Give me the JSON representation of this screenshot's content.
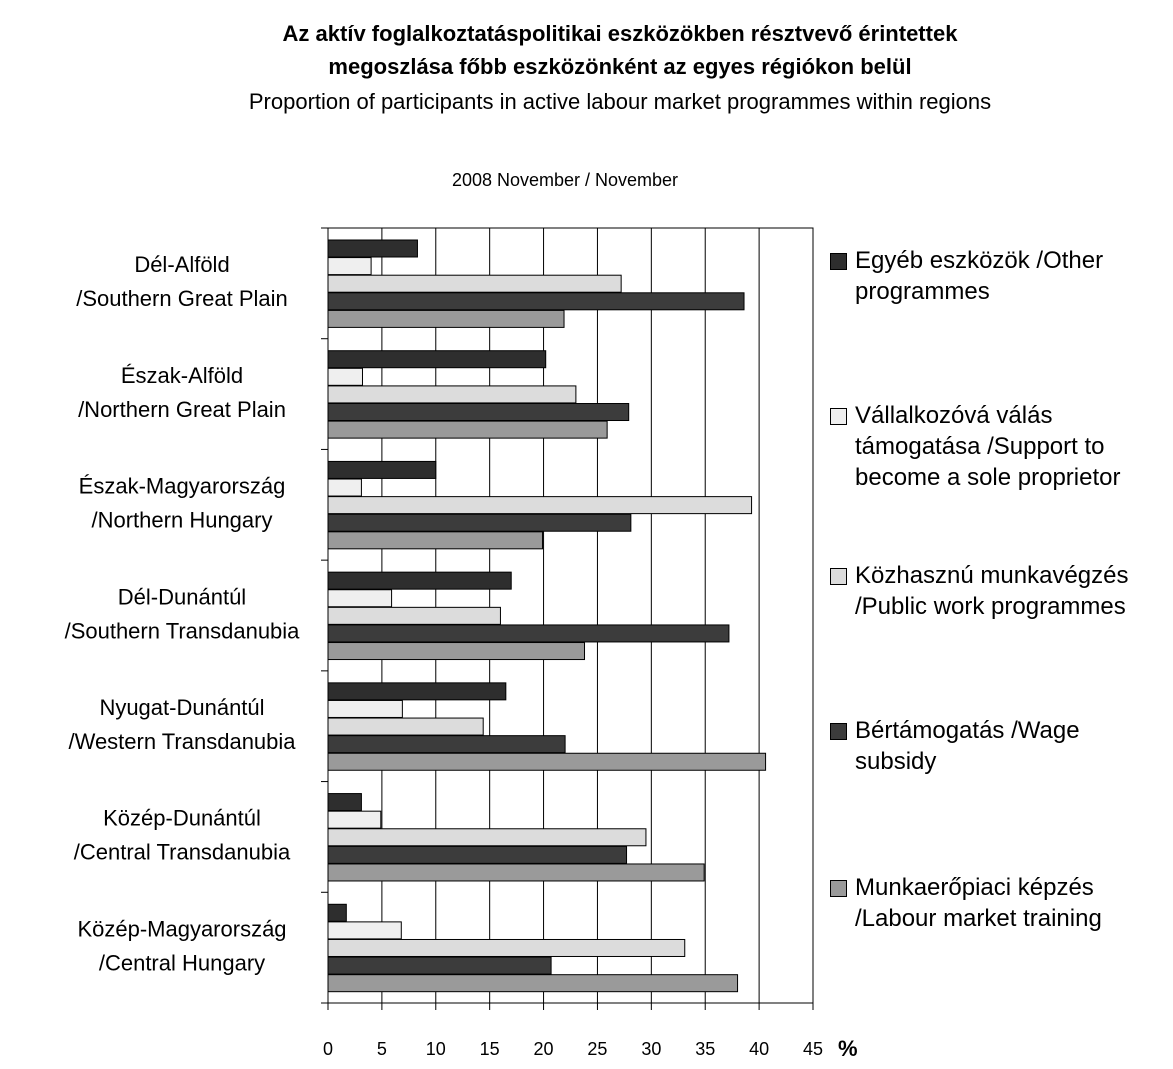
{
  "chart_data": {
    "type": "hbar",
    "title": [
      "Az aktív foglalkoztatáspolitikai eszközökben résztvevő érintettek",
      "megoszlása főbb eszközönként az egyes régiókon belül"
    ],
    "subtitle": "Proportion of participants in active labour market programmes within regions",
    "annotation": "2008 November / November",
    "xlabel": "%",
    "categories": [
      [
        "Dél-Alföld",
        "/Southern Great Plain"
      ],
      [
        "Észak-Alföld",
        "/Northern Great Plain"
      ],
      [
        "Észak-Magyarország",
        "/Northern Hungary"
      ],
      [
        "Dél-Dunántúl",
        "/Southern Transdanubia"
      ],
      [
        "Nyugat-Dunántúl",
        "/Western Transdanubia"
      ],
      [
        "Közép-Dunántúl",
        "/Central Transdanubia"
      ],
      [
        "Közép-Magyarország",
        "/Central Hungary"
      ]
    ],
    "series": [
      {
        "name": "Egyéb eszközök /Other programmes",
        "color": "#2e2e2e",
        "values": [
          8.3,
          20.2,
          10.0,
          17.0,
          16.5,
          3.1,
          1.7
        ]
      },
      {
        "name": "Vállalkozóvá válás támogatása /Support to become a sole proprietor",
        "color": "#efefef",
        "values": [
          4.0,
          3.2,
          3.1,
          5.9,
          6.9,
          4.9,
          6.8
        ]
      },
      {
        "name": "Közhasznú munkavégzés /Public work programmes",
        "color": "#dcdcdc",
        "values": [
          27.2,
          23.0,
          39.3,
          16.0,
          14.4,
          29.5,
          33.1
        ]
      },
      {
        "name": "Bértámogatás /Wage subsidy",
        "color": "#3c3c3c",
        "values": [
          38.6,
          27.9,
          28.1,
          37.2,
          22.0,
          27.7,
          20.7
        ]
      },
      {
        "name": "Munkaerőpiaci képzés /Labour market training",
        "color": "#9a9a9a",
        "values": [
          21.9,
          25.9,
          19.9,
          23.8,
          40.6,
          34.9,
          38.0
        ]
      }
    ],
    "xlim": [
      0,
      45
    ],
    "xticks": [
      0,
      5,
      10,
      15,
      20,
      25,
      30,
      35,
      40,
      45
    ],
    "grid": true
  }
}
